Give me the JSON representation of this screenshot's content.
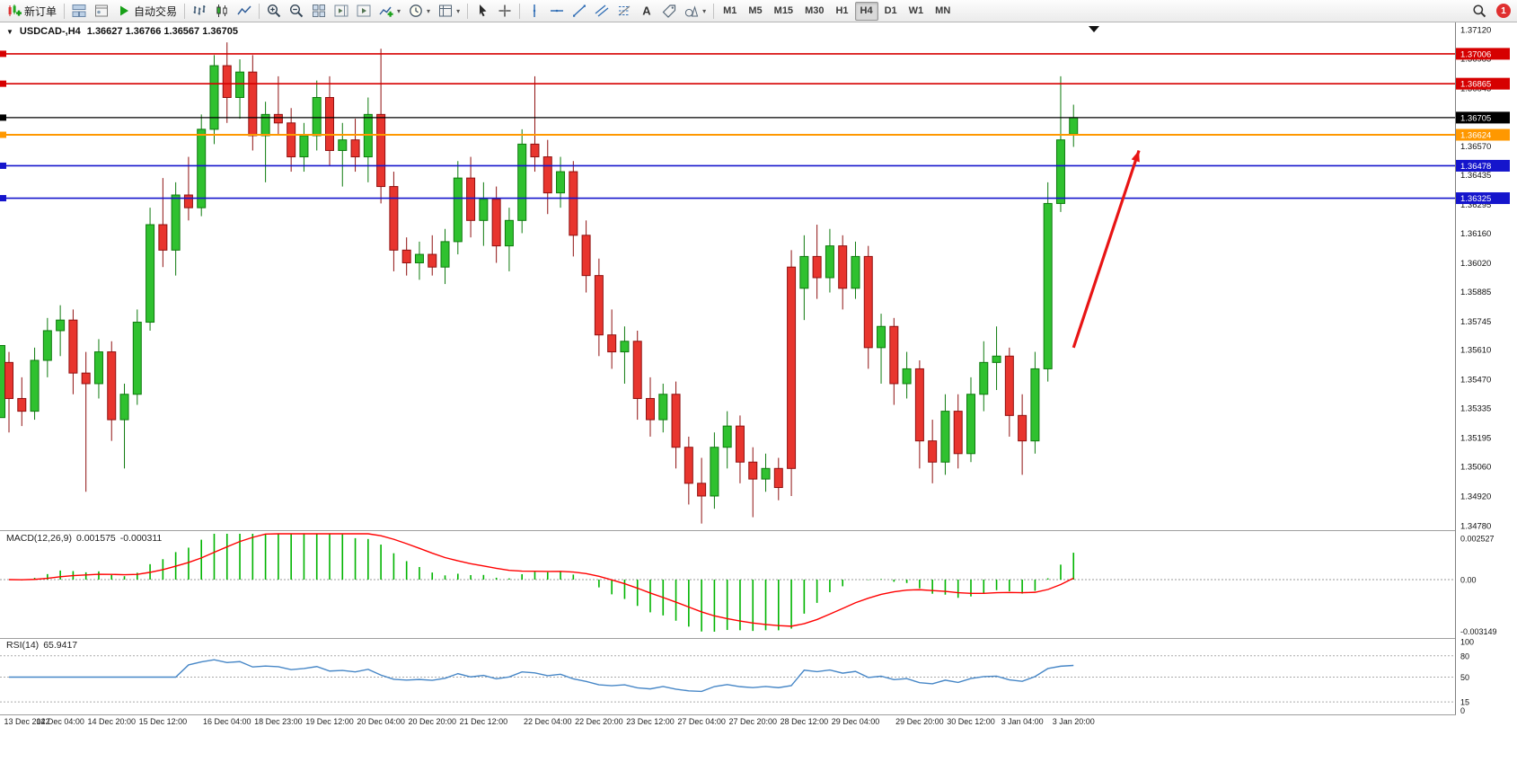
{
  "toolbar": {
    "items": [
      {
        "name": "new-order-button",
        "icon": "new-order",
        "label": "新订单"
      },
      {
        "name": "sep-1",
        "sep": true
      },
      {
        "name": "windows-button",
        "icon": "tile"
      },
      {
        "name": "profiles-button",
        "icon": "profile"
      },
      {
        "name": "auto-trading-button",
        "icon": "play",
        "label": "自动交易"
      },
      {
        "name": "sep-2",
        "sep": true
      },
      {
        "name": "bar-chart-button",
        "icon": "bars"
      },
      {
        "name": "candlestick-chart-button",
        "icon": "candles"
      },
      {
        "name": "line-chart-button",
        "icon": "linechart"
      },
      {
        "name": "sep-3",
        "sep": true
      },
      {
        "name": "zoom-in-button",
        "icon": "zoom-in"
      },
      {
        "name": "zoom-out-button",
        "icon": "zoom-out"
      },
      {
        "name": "tile-windows-button",
        "icon": "grid"
      },
      {
        "name": "chart-shift-button",
        "icon": "shift"
      },
      {
        "name": "auto-scroll-button",
        "icon": "scroll"
      },
      {
        "name": "indicators-button",
        "icon": "plus-chart",
        "dropdown": true
      },
      {
        "name": "periods-button",
        "icon": "clock",
        "dropdown": true
      },
      {
        "name": "templates-button",
        "icon": "template",
        "dropdown": true
      },
      {
        "name": "sep-4",
        "sep": true
      },
      {
        "name": "cursor-button",
        "icon": "cursor"
      },
      {
        "name": "crosshair-button",
        "icon": "crosshair"
      },
      {
        "name": "sep-5",
        "sep": true
      },
      {
        "name": "vertical-line-button",
        "icon": "vline"
      },
      {
        "name": "horizontal-line-button",
        "icon": "hline"
      },
      {
        "name": "trendline-button",
        "icon": "trend"
      },
      {
        "name": "channel-button",
        "icon": "channel"
      },
      {
        "name": "fibonacci-button",
        "icon": "fibo"
      },
      {
        "name": "text-button",
        "icon": "text"
      },
      {
        "name": "label-button",
        "icon": "label"
      },
      {
        "name": "shapes-button",
        "icon": "shapes",
        "dropdown": true
      },
      {
        "name": "sep-6",
        "sep": true
      }
    ],
    "timeframes": [
      "M1",
      "M5",
      "M15",
      "M30",
      "H1",
      "H4",
      "D1",
      "W1",
      "MN"
    ],
    "active_timeframe": "H4",
    "notification_count": "1"
  },
  "chart": {
    "symbol_header": "USDCAD-,H4",
    "ohlc": "1.36627 1.36766 1.36567 1.36705"
  },
  "chart_data": {
    "type": "candlestick",
    "symbol": "USDCAD",
    "timeframe": "H4",
    "y_max": 1.3712,
    "y_min": 1.3478,
    "y_ticks": [
      "1.37120",
      "1.36985",
      "1.36845",
      "1.36705",
      "1.36570",
      "1.36435",
      "1.36295",
      "1.36160",
      "1.36020",
      "1.35885",
      "1.35745",
      "1.35610",
      "1.35470",
      "1.35335",
      "1.35195",
      "1.35060",
      "1.34920",
      "1.34780"
    ],
    "colors": {
      "up": "#2fc12f",
      "up_border": "#0e7a0e",
      "down": "#e8352e",
      "down_border": "#8f1010",
      "arrow": "#e81414",
      "current_price": "#000000"
    },
    "hlines": [
      {
        "price": 1.37006,
        "label": "1.37006",
        "color": "#d60000",
        "width": 1.6
      },
      {
        "price": 1.36865,
        "label": "1.36865",
        "color": "#d60000",
        "width": 1.6
      },
      {
        "price": 1.36705,
        "label": "1.36705",
        "color": "#000000",
        "width": 1.2
      },
      {
        "price": 1.36624,
        "label": "1.36624",
        "color": "#ff9800",
        "width": 2
      },
      {
        "price": 1.36478,
        "label": "1.36478",
        "color": "#1515cc",
        "width": 1.6
      },
      {
        "price": 1.36325,
        "label": "1.36325",
        "color": "#1515cc",
        "width": 1.6
      }
    ],
    "arrow": {
      "from_index": 83,
      "from_price": 1.3562,
      "to_index": 88.1,
      "to_price": 1.3655,
      "color": "#e81414"
    },
    "left_clipped_candle": {
      "body_top": 1.3563,
      "body_bottom": 1.3529
    },
    "x_labels": [
      "13 Dec 2022",
      "14 Dec 04:00",
      "14 Dec 20:00",
      "15 Dec 12:00",
      "16 Dec 04:00",
      "18 Dec 23:00",
      "19 Dec 12:00",
      "20 Dec 04:00",
      "20 Dec 20:00",
      "21 Dec 12:00",
      "22 Dec 04:00",
      "22 Dec 20:00",
      "23 Dec 12:00",
      "27 Dec 04:00",
      "27 Dec 20:00",
      "28 Dec 12:00",
      "29 Dec 04:00",
      "29 Dec 20:00",
      "30 Dec 12:00",
      "3 Jan 04:00",
      "3 Jan 20:00"
    ],
    "candles": [
      [
        1.3555,
        1.356,
        1.3522,
        1.3538
      ],
      [
        1.3538,
        1.3548,
        1.3525,
        1.3532
      ],
      [
        1.3532,
        1.3562,
        1.3528,
        1.3556
      ],
      [
        1.3556,
        1.3576,
        1.3548,
        1.357
      ],
      [
        1.357,
        1.3582,
        1.3558,
        1.3575
      ],
      [
        1.3575,
        1.358,
        1.354,
        1.355
      ],
      [
        1.355,
        1.356,
        1.3494,
        1.3545
      ],
      [
        1.3545,
        1.3566,
        1.3538,
        1.356
      ],
      [
        1.356,
        1.3565,
        1.3518,
        1.3528
      ],
      [
        1.3528,
        1.3545,
        1.3505,
        1.354
      ],
      [
        1.354,
        1.358,
        1.3535,
        1.3574
      ],
      [
        1.3574,
        1.3628,
        1.357,
        1.362
      ],
      [
        1.362,
        1.3642,
        1.36,
        1.3608
      ],
      [
        1.3608,
        1.364,
        1.3596,
        1.3634
      ],
      [
        1.3634,
        1.3652,
        1.3622,
        1.3628
      ],
      [
        1.3628,
        1.3672,
        1.3624,
        1.3665
      ],
      [
        1.3665,
        1.37,
        1.3658,
        1.3695
      ],
      [
        1.3695,
        1.3706,
        1.3668,
        1.368
      ],
      [
        1.368,
        1.3698,
        1.367,
        1.3692
      ],
      [
        1.3692,
        1.37,
        1.3655,
        1.3662
      ],
      [
        1.3662,
        1.3678,
        1.364,
        1.3672
      ],
      [
        1.3672,
        1.369,
        1.3662,
        1.3668
      ],
      [
        1.3668,
        1.3675,
        1.3645,
        1.3652
      ],
      [
        1.3652,
        1.3668,
        1.3645,
        1.3662
      ],
      [
        1.3662,
        1.3688,
        1.3655,
        1.368
      ],
      [
        1.368,
        1.369,
        1.3648,
        1.3655
      ],
      [
        1.3655,
        1.3668,
        1.3638,
        1.366
      ],
      [
        1.366,
        1.367,
        1.3645,
        1.3652
      ],
      [
        1.3652,
        1.368,
        1.364,
        1.3672
      ],
      [
        1.3672,
        1.3703,
        1.363,
        1.3638
      ],
      [
        1.3638,
        1.3645,
        1.3598,
        1.3608
      ],
      [
        1.3608,
        1.3614,
        1.3596,
        1.3602
      ],
      [
        1.3602,
        1.3612,
        1.3594,
        1.3606
      ],
      [
        1.3606,
        1.3615,
        1.3596,
        1.36
      ],
      [
        1.36,
        1.3618,
        1.3592,
        1.3612
      ],
      [
        1.3612,
        1.365,
        1.3606,
        1.3642
      ],
      [
        1.3642,
        1.3652,
        1.3614,
        1.3622
      ],
      [
        1.3622,
        1.364,
        1.361,
        1.3632
      ],
      [
        1.3632,
        1.3638,
        1.3602,
        1.361
      ],
      [
        1.361,
        1.3628,
        1.3598,
        1.3622
      ],
      [
        1.3622,
        1.3665,
        1.3616,
        1.3658
      ],
      [
        1.3658,
        1.369,
        1.3645,
        1.3652
      ],
      [
        1.3652,
        1.366,
        1.3625,
        1.3635
      ],
      [
        1.3635,
        1.3652,
        1.3628,
        1.3645
      ],
      [
        1.3645,
        1.365,
        1.3605,
        1.3615
      ],
      [
        1.3615,
        1.3622,
        1.3588,
        1.3596
      ],
      [
        1.3596,
        1.3604,
        1.3558,
        1.3568
      ],
      [
        1.3568,
        1.358,
        1.3552,
        1.356
      ],
      [
        1.356,
        1.3572,
        1.3545,
        1.3565
      ],
      [
        1.3565,
        1.357,
        1.3528,
        1.3538
      ],
      [
        1.3538,
        1.3548,
        1.352,
        1.3528
      ],
      [
        1.3528,
        1.3545,
        1.3522,
        1.354
      ],
      [
        1.354,
        1.3546,
        1.3505,
        1.3515
      ],
      [
        1.3515,
        1.352,
        1.3488,
        1.3498
      ],
      [
        1.3498,
        1.351,
        1.3479,
        1.3492
      ],
      [
        1.3492,
        1.3522,
        1.3486,
        1.3515
      ],
      [
        1.3515,
        1.3532,
        1.3505,
        1.3525
      ],
      [
        1.3525,
        1.353,
        1.3498,
        1.3508
      ],
      [
        1.3508,
        1.3515,
        1.3482,
        1.35
      ],
      [
        1.35,
        1.3512,
        1.3494,
        1.3505
      ],
      [
        1.3505,
        1.351,
        1.349,
        1.3496
      ],
      [
        1.36,
        1.3608,
        1.3492,
        1.3505
      ],
      [
        1.359,
        1.3615,
        1.3575,
        1.3605
      ],
      [
        1.3605,
        1.362,
        1.3585,
        1.3595
      ],
      [
        1.3595,
        1.3618,
        1.3588,
        1.361
      ],
      [
        1.361,
        1.3615,
        1.358,
        1.359
      ],
      [
        1.359,
        1.3612,
        1.3585,
        1.3605
      ],
      [
        1.3605,
        1.361,
        1.3552,
        1.3562
      ],
      [
        1.3562,
        1.3578,
        1.3545,
        1.3572
      ],
      [
        1.3572,
        1.3576,
        1.3535,
        1.3545
      ],
      [
        1.3545,
        1.356,
        1.3538,
        1.3552
      ],
      [
        1.3552,
        1.3556,
        1.3505,
        1.3518
      ],
      [
        1.3518,
        1.3528,
        1.3498,
        1.3508
      ],
      [
        1.3508,
        1.354,
        1.3502,
        1.3532
      ],
      [
        1.3532,
        1.354,
        1.3505,
        1.3512
      ],
      [
        1.3512,
        1.3548,
        1.3508,
        1.354
      ],
      [
        1.354,
        1.3565,
        1.3532,
        1.3555
      ],
      [
        1.3555,
        1.3572,
        1.3542,
        1.3558
      ],
      [
        1.3558,
        1.3562,
        1.352,
        1.353
      ],
      [
        1.353,
        1.354,
        1.3502,
        1.3518
      ],
      [
        1.3518,
        1.356,
        1.3512,
        1.3552
      ],
      [
        1.3552,
        1.364,
        1.3546,
        1.363
      ],
      [
        1.363,
        1.369,
        1.3626,
        1.366
      ],
      [
        1.36627,
        1.36766,
        1.36567,
        1.36705
      ]
    ],
    "indicators": {
      "macd": {
        "display": "MACD(12,26,9)",
        "params": [
          12,
          26,
          9
        ],
        "main_value": "0.001575",
        "signal_value": "-0.000311",
        "histogram_color": "#00b400",
        "signal_color": "#ff0000",
        "scale_ticks": [
          {
            "label": "0.002527",
            "value": 0.002527
          },
          {
            "label": "0.00",
            "value": 0
          },
          {
            "label": "-0.003149",
            "value": -0.003149
          }
        ]
      },
      "rsi": {
        "display": "RSI(14)",
        "period": 14,
        "value": "65.9417",
        "line_color": "#4787c7",
        "levels": [
          80,
          50,
          15
        ],
        "scale_ticks": [
          {
            "label": "100",
            "value": 100
          },
          {
            "label": "80",
            "value": 80
          },
          {
            "label": "50",
            "value": 50
          },
          {
            "label": "15",
            "value": 15
          },
          {
            "label": "0",
            "value": 0
          }
        ]
      }
    }
  }
}
